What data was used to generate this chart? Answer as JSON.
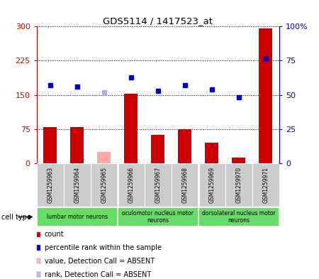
{
  "title": "GDS5114 / 1417523_at",
  "samples": [
    "GSM1259963",
    "GSM1259964",
    "GSM1259965",
    "GSM1259966",
    "GSM1259967",
    "GSM1259968",
    "GSM1259969",
    "GSM1259970",
    "GSM1259971"
  ],
  "bar_values": [
    80,
    80,
    25,
    152,
    62,
    75,
    45,
    12,
    296
  ],
  "bar_colors": [
    "#cc0000",
    "#cc0000",
    "#ffaaaa",
    "#cc0000",
    "#cc0000",
    "#cc0000",
    "#cc0000",
    "#cc0000",
    "#cc0000"
  ],
  "rank_values": [
    57,
    56,
    52,
    63,
    53,
    57,
    54,
    48,
    77
  ],
  "rank_colors": [
    "#0000cc",
    "#0000cc",
    "#aaaaff",
    "#0000cc",
    "#0000cc",
    "#0000cc",
    "#0000cc",
    "#0000cc",
    "#0000cc"
  ],
  "absent_flags": [
    false,
    false,
    true,
    false,
    false,
    false,
    false,
    false,
    false
  ],
  "ylim_left": [
    0,
    300
  ],
  "ylim_right": [
    0,
    100
  ],
  "yticks_left": [
    0,
    75,
    150,
    225,
    300
  ],
  "yticks_right": [
    0,
    25,
    50,
    75,
    100
  ],
  "ytick_labels_left": [
    "0",
    "75",
    "150",
    "225",
    "300"
  ],
  "ytick_labels_right": [
    "0",
    "25",
    "50",
    "75",
    "100%"
  ],
  "cell_groups": [
    {
      "label": "lumbar motor neurons",
      "start": 0,
      "end": 3,
      "color": "#66dd66"
    },
    {
      "label": "oculomotor nucleus motor\nneurons",
      "start": 3,
      "end": 6,
      "color": "#66dd66"
    },
    {
      "label": "dorsolateral nucleus motor\nneurons",
      "start": 6,
      "end": 9,
      "color": "#66dd66"
    }
  ],
  "legend_items": [
    {
      "label": "count",
      "color": "#cc0000"
    },
    {
      "label": "percentile rank within the sample",
      "color": "#0000cc"
    },
    {
      "label": "value, Detection Call = ABSENT",
      "color": "#ffbbbb"
    },
    {
      "label": "rank, Detection Call = ABSENT",
      "color": "#bbbbff"
    }
  ],
  "bg_color": "#ffffff",
  "plot_bg_color": "#ffffff",
  "tick_area_color": "#cccccc",
  "left_tick_color": "#cc0000",
  "right_tick_color": "#0000cc",
  "bar_width": 0.5
}
